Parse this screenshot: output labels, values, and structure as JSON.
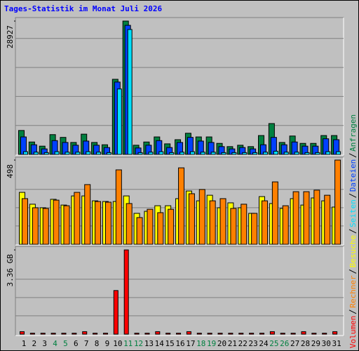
{
  "title": "Tages-Statistik im Monat Juli 2026",
  "categories": [
    "1",
    "2",
    "3",
    "4",
    "5",
    "6",
    "7",
    "8",
    "9",
    "10",
    "11",
    "12",
    "13",
    "14",
    "15",
    "16",
    "17",
    "18",
    "19",
    "20",
    "21",
    "22",
    "23",
    "24",
    "25",
    "26",
    "27",
    "28",
    "29",
    "30",
    "31"
  ],
  "category_colors": [
    "#000000",
    "#000000",
    "#000000",
    "#008040",
    "#008040",
    "#000000",
    "#000000",
    "#000000",
    "#000000",
    "#000000",
    "#008040",
    "#008040",
    "#000000",
    "#000000",
    "#000000",
    "#000000",
    "#000000",
    "#008040",
    "#008040",
    "#000000",
    "#000000",
    "#000000",
    "#000000",
    "#000000",
    "#008040",
    "#008040",
    "#000000",
    "#000000",
    "#000000",
    "#000000",
    "#000000"
  ],
  "chart_data": [
    {
      "type": "bar",
      "ylim": [
        0,
        28927
      ],
      "yticks": [
        28927
      ],
      "series": [
        {
          "name": "Anfragen",
          "color": "#008040",
          "values": [
            5200,
            2700,
            1800,
            4300,
            3700,
            2600,
            4400,
            2600,
            2100,
            16300,
            28927,
            2000,
            2700,
            3800,
            2300,
            3200,
            4600,
            3800,
            3800,
            2400,
            1700,
            2000,
            1700,
            4100,
            6700,
            2600,
            4000,
            2400,
            2400,
            4100,
            4100
          ]
        },
        {
          "name": "Dateien",
          "color": "#0040ff",
          "values": [
            3800,
            2100,
            1200,
            3000,
            2600,
            2000,
            2900,
            2000,
            1500,
            15700,
            28000,
            1400,
            2000,
            3000,
            1500,
            2600,
            3700,
            2900,
            2600,
            1700,
            1200,
            1500,
            1200,
            2100,
            3700,
            2100,
            2700,
            1800,
            1800,
            3400,
            3200
          ]
        },
        {
          "name": "Seiten",
          "color": "#00e0ff",
          "values": [
            600,
            500,
            400,
            600,
            500,
            500,
            600,
            500,
            400,
            14200,
            27100,
            400,
            500,
            600,
            400,
            500,
            600,
            500,
            500,
            400,
            400,
            400,
            400,
            500,
            700,
            500,
            500,
            400,
            400,
            600,
            600
          ]
        }
      ]
    },
    {
      "type": "bar",
      "ylim": [
        0,
        498
      ],
      "yticks": [
        498
      ],
      "series": [
        {
          "name": "Besuche",
          "color": "#ffff00",
          "values": [
            307,
            237,
            216,
            266,
            232,
            286,
            286,
            257,
            253,
            253,
            286,
            183,
            195,
            228,
            228,
            270,
            315,
            257,
            290,
            216,
            245,
            216,
            183,
            282,
            241,
            212,
            270,
            232,
            274,
            257,
            220
          ]
        },
        {
          "name": "Rechner",
          "color": "#ff8000",
          "values": [
            270,
            216,
            212,
            261,
            228,
            307,
            353,
            253,
            249,
            440,
            241,
            158,
            207,
            187,
            207,
            452,
            299,
            324,
            257,
            270,
            212,
            237,
            183,
            257,
            369,
            228,
            311,
            311,
            320,
            290,
            498
          ]
        }
      ]
    },
    {
      "type": "bar",
      "ylim": [
        0,
        3.36
      ],
      "yticks": [
        {
          "value": 3.36,
          "label": "3.36 GB"
        }
      ],
      "series": [
        {
          "name": "Volumen",
          "color": "#ff0000",
          "values": [
            0.1,
            0.04,
            0.04,
            0.04,
            0.04,
            0.04,
            0.1,
            0.04,
            0.04,
            1.74,
            3.36,
            0.04,
            0.04,
            0.1,
            0.04,
            0.04,
            0.1,
            0.04,
            0.04,
            0.04,
            0.04,
            0.04,
            0.04,
            0.04,
            0.1,
            0.04,
            0.04,
            0.1,
            0.04,
            0.04,
            0.1
          ]
        }
      ]
    }
  ]
}
